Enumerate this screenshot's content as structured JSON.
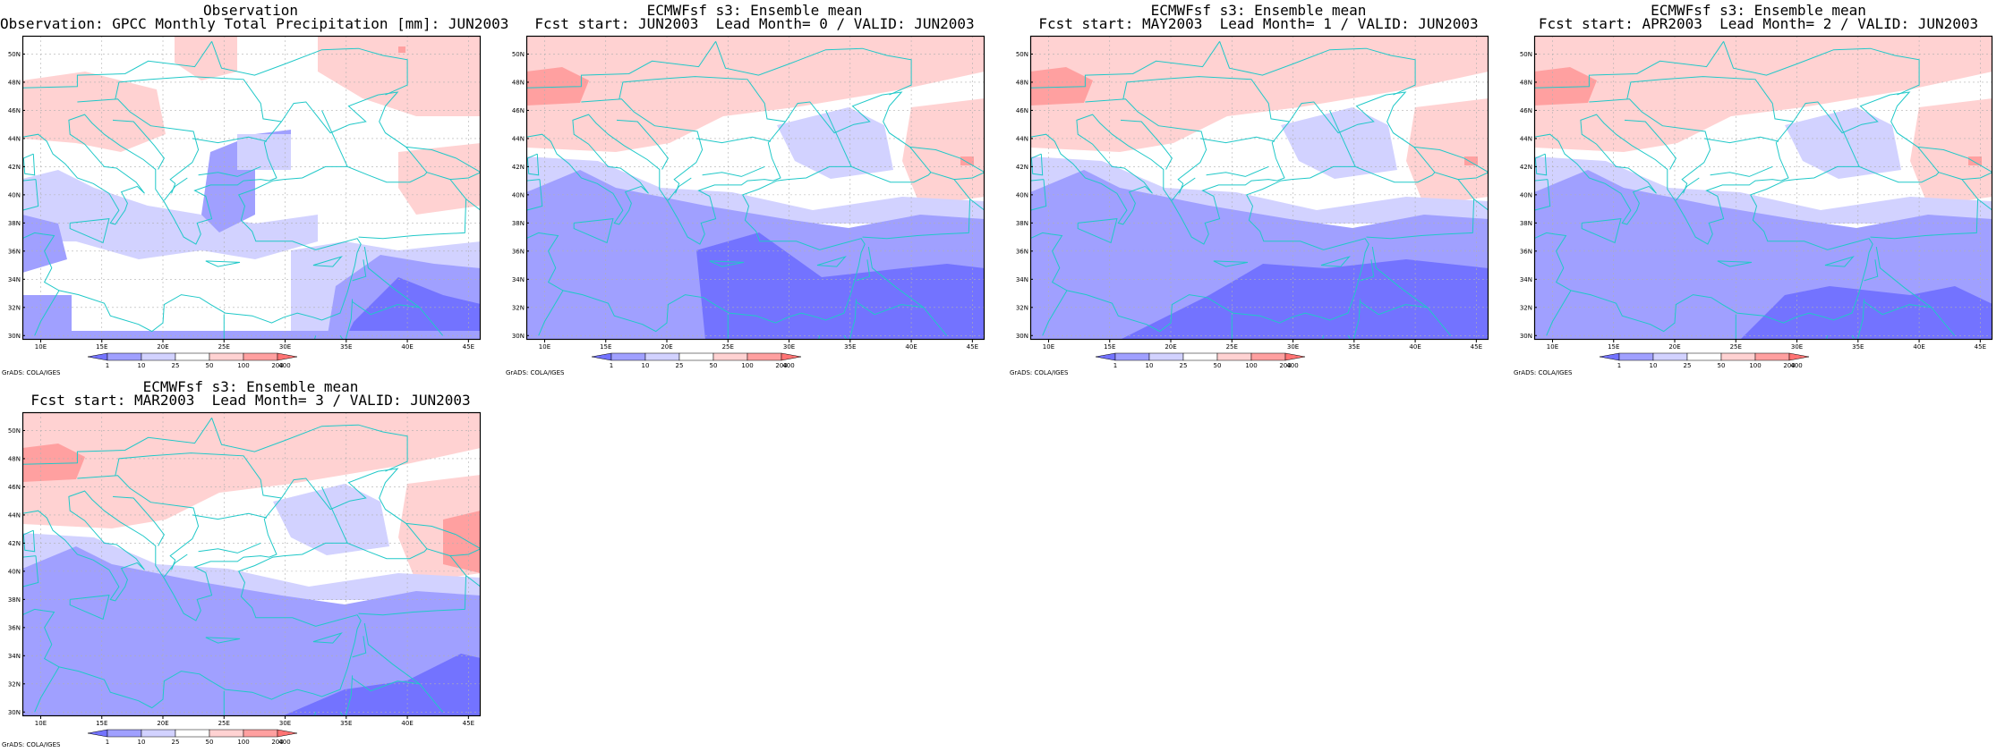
{
  "colors": {
    "shade_levels": [
      "#7373ff",
      "#a0a0ff",
      "#d2d2ff",
      "#ffffff",
      "#ffd2d2",
      "#ffa0a0",
      "#ff7373"
    ],
    "coast": "#20c8c8",
    "grid": "#b0b0b0"
  },
  "map_axes": {
    "lon_ticks": [
      "10E",
      "15E",
      "20E",
      "25E",
      "30E",
      "35E",
      "40E",
      "45E"
    ],
    "lat_ticks": [
      "30N",
      "32N",
      "34N",
      "36N",
      "38N",
      "40N",
      "42N",
      "44N",
      "46N",
      "48N",
      "50N"
    ],
    "lon_range": [
      8.5,
      46
    ],
    "lat_range": [
      29.7,
      51.3
    ]
  },
  "colorbar": {
    "labels": [
      "1",
      "10",
      "25",
      "50",
      "100",
      "200",
      "400"
    ]
  },
  "credit": "GrADS: COLA/IGES",
  "panels": [
    {
      "id": "obs",
      "title_line1": "Observation",
      "title_line2": "Observation: GPCC Monthly Total Precipitation [mm]: JUN2003"
    },
    {
      "id": "lead0",
      "title_line1": "ECMWFsf s3: Ensemble mean",
      "title_line2": "Fcst start: JUN2003  Lead Month= 0 / VALID: JUN2003"
    },
    {
      "id": "lead1",
      "title_line1": "ECMWFsf s3: Ensemble mean",
      "title_line2": "Fcst start: MAY2003  Lead Month= 1 / VALID: JUN2003"
    },
    {
      "id": "lead2",
      "title_line1": "ECMWFsf s3: Ensemble mean",
      "title_line2": "Fcst start: APR2003  Lead Month= 2 / VALID: JUN2003"
    },
    {
      "id": "lead3",
      "title_line1": "ECMWFsf s3: Ensemble mean",
      "title_line2": "Fcst start: MAR2003  Lead Month= 3 / VALID: JUN2003"
    }
  ]
}
